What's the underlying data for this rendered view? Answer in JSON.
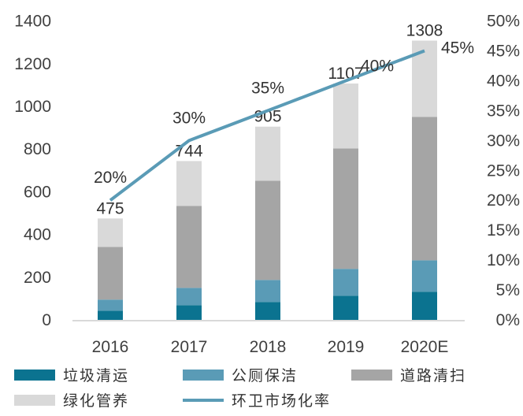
{
  "chart_data": {
    "type": "bar",
    "stacked": true,
    "categories": [
      "2016",
      "2017",
      "2018",
      "2019",
      "2020E"
    ],
    "series": [
      {
        "name": "垃圾清运",
        "values": [
          43,
          69,
          84,
          113,
          132
        ],
        "color": "#0b7390"
      },
      {
        "name": "公厕保洁",
        "values": [
          52,
          81,
          103,
          126,
          147
        ],
        "color": "#5a9bb6"
      },
      {
        "name": "道路清扫",
        "values": [
          247,
          384,
          465,
          564,
          672
        ],
        "color": "#a5a5a5"
      },
      {
        "name": "绿化管养",
        "values": [
          133,
          210,
          253,
          304,
          357
        ],
        "color": "#d9d9d9"
      }
    ],
    "totals": [
      475,
      744,
      905,
      1107,
      1308
    ],
    "line": {
      "name": "环卫市场化率",
      "values": [
        0.2,
        0.3,
        0.35,
        0.4,
        0.45
      ],
      "labels": [
        "20%",
        "30%",
        "35%",
        "40%",
        "45%"
      ],
      "color": "#5a9bb6",
      "axis": "right"
    },
    "ylim": [
      0,
      1400
    ],
    "yticks": [
      "0",
      "200",
      "400",
      "600",
      "800",
      "1000",
      "1200",
      "1400"
    ],
    "y2lim": [
      0,
      0.5
    ],
    "y2ticks": [
      "0%",
      "5%",
      "10%",
      "15%",
      "20%",
      "25%",
      "30%",
      "35%",
      "40%",
      "45%",
      "50%"
    ],
    "grid": false,
    "legend": "bottom"
  }
}
